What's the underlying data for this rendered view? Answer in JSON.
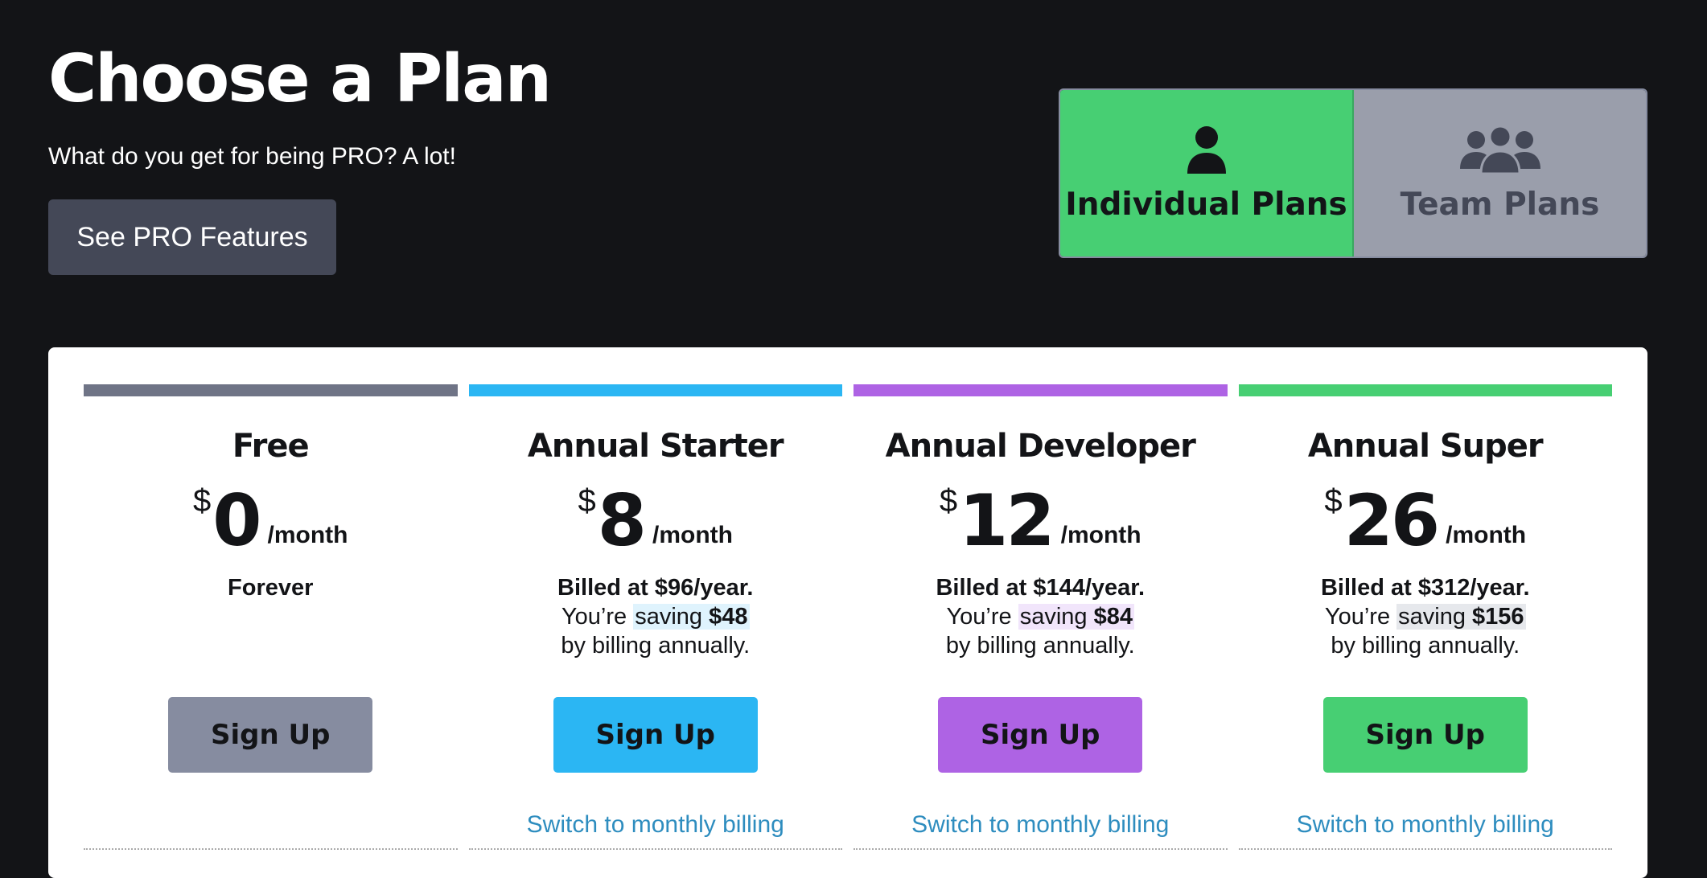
{
  "header": {
    "title": "Choose a Plan",
    "subtitle": "What do you get for being PRO? A lot!",
    "pro_features_label": "See PRO Features"
  },
  "plan_toggle": {
    "options": [
      {
        "label": "Individual Plans",
        "icon": "user-icon",
        "active": true
      },
      {
        "label": "Team Plans",
        "icon": "team-icon",
        "active": false
      }
    ]
  },
  "plans": [
    {
      "name": "Free",
      "currency": "$",
      "amount": "0",
      "per": "/month",
      "billed": "Forever",
      "saving_prefix": "",
      "saving_word": "",
      "saving_amount": "",
      "saving_suffix": "",
      "cta": "Sign Up",
      "switch_link": "",
      "color": "#6f7486",
      "button_color": "#868ca0",
      "highlight": "#ffffff"
    },
    {
      "name": "Annual Starter",
      "currency": "$",
      "amount": "8",
      "per": "/month",
      "billed": "Billed at $96/year.",
      "saving_prefix": "You’re ",
      "saving_word": "saving",
      "saving_amount": "$48",
      "saving_suffix": "by billing annually.",
      "cta": "Sign Up",
      "switch_link": "Switch to monthly billing",
      "color": "#2bb6f3",
      "button_color": "#2bb6f3",
      "highlight": "#dff3fd"
    },
    {
      "name": "Annual Developer",
      "currency": "$",
      "amount": "12",
      "per": "/month",
      "billed": "Billed at $144/year.",
      "saving_prefix": "You’re ",
      "saving_word": "saving",
      "saving_amount": "$84",
      "saving_suffix": "by billing annually.",
      "cta": "Sign Up",
      "switch_link": "Switch to monthly billing",
      "color": "#ae63e4",
      "button_color": "#ae63e4",
      "highlight": "#f1e5fb"
    },
    {
      "name": "Annual Super",
      "currency": "$",
      "amount": "26",
      "per": "/month",
      "billed": "Billed at $312/year.",
      "saving_prefix": "You’re ",
      "saving_word": "saving",
      "saving_amount": "$156",
      "saving_suffix": "by billing annually.",
      "cta": "Sign Up",
      "switch_link": "Switch to monthly billing",
      "color": "#47cf73",
      "button_color": "#47cf73",
      "highlight": "#e6e8ec"
    }
  ]
}
